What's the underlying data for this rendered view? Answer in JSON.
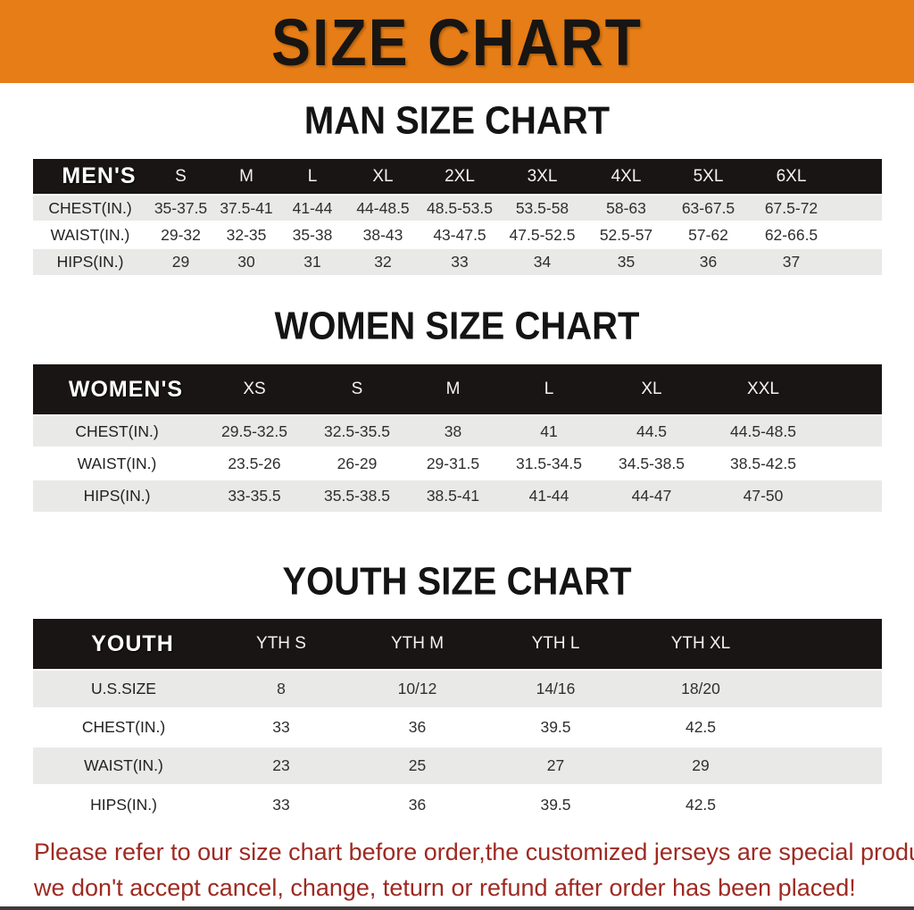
{
  "banner": {
    "title": "SIZE CHART"
  },
  "sections": [
    {
      "id": "men",
      "heading": "MAN SIZE CHART",
      "table": {
        "corner_label": "MEN'S",
        "columns": [
          "S",
          "M",
          "L",
          "XL",
          "2XL",
          "3XL",
          "4XL",
          "5XL",
          "6XL"
        ],
        "rows": [
          {
            "label": "CHEST(IN.)",
            "values": [
              "35-37.5",
              "37.5-41",
              "41-44",
              "44-48.5",
              "48.5-53.5",
              "53.5-58",
              "58-63",
              "63-67.5",
              "67.5-72"
            ]
          },
          {
            "label": "WAIST(IN.)",
            "values": [
              "29-32",
              "32-35",
              "35-38",
              "38-43",
              "43-47.5",
              "47.5-52.5",
              "52.5-57",
              "57-62",
              "62-66.5"
            ]
          },
          {
            "label": "HIPS(IN.)",
            "values": [
              "29",
              "30",
              "31",
              "32",
              "33",
              "34",
              "35",
              "36",
              "37"
            ]
          }
        ]
      }
    },
    {
      "id": "women",
      "heading": "WOMEN SIZE CHART",
      "table": {
        "corner_label": "WOMEN'S",
        "columns": [
          "XS",
          "S",
          "M",
          "L",
          "XL",
          "XXL"
        ],
        "rows": [
          {
            "label": "CHEST(IN.)",
            "values": [
              "29.5-32.5",
              "32.5-35.5",
              "38",
              "41",
              "44.5",
              "44.5-48.5"
            ]
          },
          {
            "label": "WAIST(IN.)",
            "values": [
              "23.5-26",
              "26-29",
              "29-31.5",
              "31.5-34.5",
              "34.5-38.5",
              "38.5-42.5"
            ]
          },
          {
            "label": "HIPS(IN.)",
            "values": [
              "33-35.5",
              "35.5-38.5",
              "38.5-41",
              "41-44",
              "44-47",
              "47-50"
            ]
          }
        ]
      }
    },
    {
      "id": "youth",
      "heading": "YOUTH SIZE CHART",
      "table": {
        "corner_label": "YOUTH",
        "columns": [
          "YTH S",
          "YTH M",
          "YTH L",
          "YTH XL"
        ],
        "rows": [
          {
            "label": "U.S.SIZE",
            "values": [
              "8",
              "10/12",
              "14/16",
              "18/20"
            ]
          },
          {
            "label": "CHEST(IN.)",
            "values": [
              "33",
              "36",
              "39.5",
              "42.5"
            ]
          },
          {
            "label": "WAIST(IN.)",
            "values": [
              "23",
              "25",
              "27",
              "29"
            ]
          },
          {
            "label": "HIPS(IN.)",
            "values": [
              "33",
              "36",
              "39.5",
              "42.5"
            ]
          }
        ]
      }
    }
  ],
  "footer": {
    "lines": [
      "Please refer to our size chart before order,the customized jerseys are special products,",
      "we don't accept cancel, change, teturn or refund after order has been placed!"
    ]
  },
  "colors": {
    "banner_bg": "#e67d16",
    "banner_text": "#181512",
    "table_header_bg": "#191514",
    "table_header_text": "#f4f3f1",
    "row_alt_bg": "#e9e9e7",
    "row_white_bg": "#ffffff",
    "cell_text": "#2f2f2f",
    "heading_text": "#141414",
    "footer_text": "#9e2a22",
    "bottom_bar": "#3d3b3a"
  }
}
